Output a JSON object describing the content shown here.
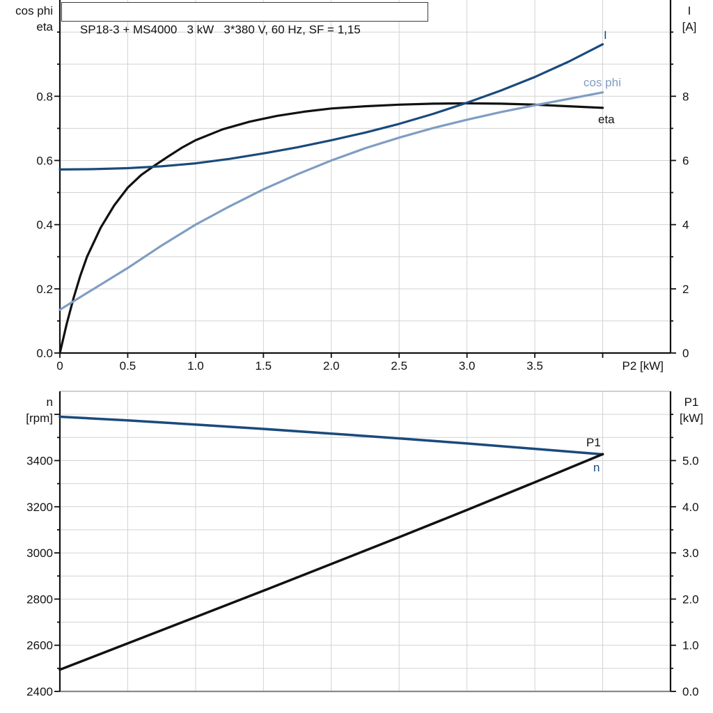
{
  "title_box": "SP18-3 + MS4000   3 kW   3*380 V, 60 Hz, SF = 1,15",
  "colors": {
    "dark_blue": "#1A4A7C",
    "light_blue": "#7F9DC3",
    "black": "#111111",
    "grid": "#D2D2D2",
    "axis": "#111111",
    "border_top": "#B5B5B5",
    "border_bottom": "#8A8A8A"
  },
  "chart_data": [
    {
      "type": "line",
      "title": "SP18-3 + MS4000   3 kW   3*380 V, 60 Hz, SF = 1,15",
      "grid": true,
      "legend_position": "curve-end-labels",
      "x_axis": {
        "label": "P2 [kW]",
        "min": 0,
        "max": 4.5,
        "ticks": [
          [
            0,
            "0",
            1
          ],
          [
            0.5,
            "0.5",
            1
          ],
          [
            1,
            "1.0",
            1
          ],
          [
            1.5,
            "1.5",
            1
          ],
          [
            2,
            "2.0",
            1
          ],
          [
            2.5,
            "2.5",
            1
          ],
          [
            3,
            "3.0",
            1
          ],
          [
            3.5,
            "3.5",
            1
          ],
          [
            4,
            "",
            1
          ]
        ]
      },
      "left_axis": {
        "label_lines": [
          "cos phi",
          "eta"
        ],
        "min": 0,
        "max": 1.1,
        "ticks": [
          [
            0,
            "0.0",
            1
          ],
          [
            0.1,
            "",
            0
          ],
          [
            0.2,
            "0.2",
            1
          ],
          [
            0.3,
            "",
            0
          ],
          [
            0.4,
            "0.4",
            1
          ],
          [
            0.5,
            "",
            0
          ],
          [
            0.6,
            "0.6",
            1
          ],
          [
            0.7,
            "",
            0
          ],
          [
            0.8,
            "0.8",
            1
          ],
          [
            0.9,
            "",
            0
          ],
          [
            1,
            "",
            0
          ]
        ]
      },
      "right_axis": {
        "label_lines": [
          "I",
          "[A]"
        ],
        "min": 0,
        "max": 11,
        "ticks": [
          [
            0,
            "0",
            1
          ],
          [
            1,
            "",
            0
          ],
          [
            2,
            "2",
            1
          ],
          [
            3,
            "",
            0
          ],
          [
            4,
            "4",
            1
          ],
          [
            5,
            "",
            0
          ],
          [
            6,
            "6",
            1
          ],
          [
            7,
            "",
            0
          ],
          [
            8,
            "8",
            1
          ],
          [
            9,
            "",
            0
          ],
          [
            10,
            "",
            0
          ]
        ]
      },
      "series": [
        {
          "name": "eta",
          "axis": "left",
          "color": "black",
          "points": [
            [
              0,
              0
            ],
            [
              0.05,
              0.09
            ],
            [
              0.1,
              0.17
            ],
            [
              0.15,
              0.24
            ],
            [
              0.2,
              0.3
            ],
            [
              0.3,
              0.39
            ],
            [
              0.4,
              0.46
            ],
            [
              0.5,
              0.515
            ],
            [
              0.6,
              0.555
            ],
            [
              0.7,
              0.585
            ],
            [
              0.8,
              0.613
            ],
            [
              0.9,
              0.64
            ],
            [
              1.0,
              0.663
            ],
            [
              1.2,
              0.697
            ],
            [
              1.4,
              0.721
            ],
            [
              1.6,
              0.739
            ],
            [
              1.8,
              0.752
            ],
            [
              2.0,
              0.762
            ],
            [
              2.25,
              0.769
            ],
            [
              2.5,
              0.774
            ],
            [
              2.75,
              0.777
            ],
            [
              3.0,
              0.778
            ],
            [
              3.25,
              0.777
            ],
            [
              3.5,
              0.774
            ],
            [
              3.75,
              0.769
            ],
            [
              4.0,
              0.764
            ]
          ]
        },
        {
          "name": "cos phi",
          "axis": "left",
          "color": "light_blue",
          "points": [
            [
              0,
              0.135
            ],
            [
              0.25,
              0.2
            ],
            [
              0.5,
              0.265
            ],
            [
              0.75,
              0.335
            ],
            [
              1.0,
              0.4
            ],
            [
              1.25,
              0.457
            ],
            [
              1.5,
              0.51
            ],
            [
              1.75,
              0.557
            ],
            [
              2.0,
              0.6
            ],
            [
              2.25,
              0.638
            ],
            [
              2.5,
              0.671
            ],
            [
              2.75,
              0.701
            ],
            [
              3.0,
              0.727
            ],
            [
              3.25,
              0.751
            ],
            [
              3.5,
              0.772
            ],
            [
              3.75,
              0.792
            ],
            [
              4.0,
              0.812
            ]
          ]
        },
        {
          "name": "I",
          "axis": "right",
          "color": "dark_blue",
          "points": [
            [
              0,
              5.72
            ],
            [
              0.25,
              5.73
            ],
            [
              0.5,
              5.76
            ],
            [
              0.75,
              5.82
            ],
            [
              1.0,
              5.91
            ],
            [
              1.25,
              6.05
            ],
            [
              1.5,
              6.22
            ],
            [
              1.75,
              6.41
            ],
            [
              2.0,
              6.63
            ],
            [
              2.25,
              6.87
            ],
            [
              2.5,
              7.14
            ],
            [
              2.75,
              7.45
            ],
            [
              3.0,
              7.8
            ],
            [
              3.25,
              8.18
            ],
            [
              3.5,
              8.6
            ],
            [
              3.75,
              9.08
            ],
            [
              4.0,
              9.62
            ]
          ]
        }
      ]
    },
    {
      "type": "line",
      "title": "",
      "grid": true,
      "legend_position": "curve-end-labels",
      "x_axis": {
        "label": "",
        "min": 0,
        "max": 4.5,
        "ticks": [
          [
            0.5,
            "",
            1
          ],
          [
            1,
            "",
            1
          ],
          [
            1.5,
            "",
            1
          ],
          [
            2,
            "",
            1
          ],
          [
            2.5,
            "",
            1
          ],
          [
            3,
            "",
            1
          ],
          [
            3.5,
            "",
            1
          ],
          [
            4,
            "",
            1
          ]
        ]
      },
      "left_axis": {
        "label_lines": [
          "n",
          "[rpm]"
        ],
        "min": 2400,
        "max": 3700,
        "ticks": [
          [
            2400,
            "2400",
            1
          ],
          [
            2500,
            "",
            0
          ],
          [
            2600,
            "2600",
            1
          ],
          [
            2700,
            "",
            0
          ],
          [
            2800,
            "2800",
            1
          ],
          [
            2900,
            "",
            0
          ],
          [
            3000,
            "3000",
            1
          ],
          [
            3100,
            "",
            0
          ],
          [
            3200,
            "3200",
            1
          ],
          [
            3300,
            "",
            0
          ],
          [
            3400,
            "3400",
            1
          ],
          [
            3500,
            "",
            0
          ],
          [
            3600,
            "",
            1
          ]
        ]
      },
      "right_axis": {
        "label_lines": [
          "P1",
          "[kW]"
        ],
        "min": 0,
        "max": 6.5,
        "ticks": [
          [
            0,
            "0.0",
            1
          ],
          [
            0.5,
            "",
            0
          ],
          [
            1,
            "1.0",
            1
          ],
          [
            1.5,
            "",
            0
          ],
          [
            2,
            "2.0",
            1
          ],
          [
            2.5,
            "",
            0
          ],
          [
            3,
            "3.0",
            1
          ],
          [
            3.5,
            "",
            0
          ],
          [
            4,
            "4.0",
            1
          ],
          [
            4.5,
            "",
            0
          ],
          [
            5,
            "5.0",
            1
          ],
          [
            5.5,
            "",
            0
          ],
          [
            6,
            "",
            0
          ]
        ]
      },
      "series": [
        {
          "name": "n",
          "axis": "left",
          "color": "dark_blue",
          "points": [
            [
              0,
              3590
            ],
            [
              0.5,
              3574
            ],
            [
              1.0,
              3556
            ],
            [
              1.5,
              3537
            ],
            [
              2.0,
              3517
            ],
            [
              2.5,
              3496
            ],
            [
              3.0,
              3474
            ],
            [
              3.5,
              3451
            ],
            [
              4.0,
              3427
            ]
          ]
        },
        {
          "name": "P1",
          "axis": "right",
          "color": "black",
          "points": [
            [
              0,
              0.47
            ],
            [
              0.5,
              1.04
            ],
            [
              1.0,
              1.61
            ],
            [
              1.5,
              2.18
            ],
            [
              2.0,
              2.76
            ],
            [
              2.5,
              3.34
            ],
            [
              3.0,
              3.93
            ],
            [
              3.5,
              4.53
            ],
            [
              4.0,
              5.14
            ]
          ]
        }
      ]
    }
  ]
}
